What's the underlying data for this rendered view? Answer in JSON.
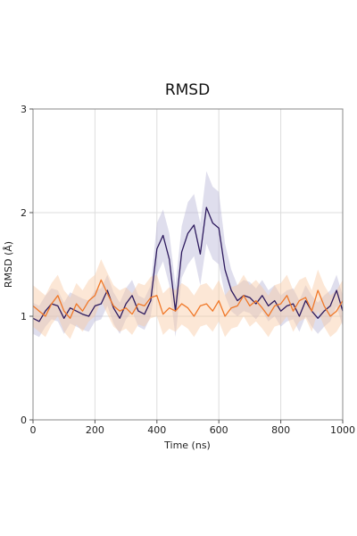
{
  "chart_data": {
    "type": "line",
    "title": "RMSD",
    "xlabel": "Time (ns)",
    "ylabel": "RMSD (Å)",
    "xlim": [
      0,
      1000
    ],
    "ylim": [
      0,
      3
    ],
    "x_ticks": [
      "0",
      "200",
      "400",
      "600",
      "800",
      "1000"
    ],
    "y_ticks": [
      "0",
      "1",
      "2",
      "3"
    ],
    "grid": true,
    "legend": "none",
    "colors": {
      "series_1": "#2d1a5e",
      "series_1_band": "#b8b6d8",
      "series_2": "#f07828",
      "series_2_band": "#f9c9a3",
      "grid": "#dddddd",
      "axes": "#888888"
    },
    "x": [
      0,
      20,
      40,
      60,
      80,
      100,
      120,
      140,
      160,
      180,
      200,
      220,
      240,
      260,
      280,
      300,
      320,
      340,
      360,
      380,
      400,
      420,
      440,
      460,
      480,
      500,
      520,
      540,
      560,
      580,
      600,
      620,
      640,
      660,
      680,
      700,
      720,
      740,
      760,
      780,
      800,
      820,
      840,
      860,
      880,
      900,
      920,
      940,
      960,
      980,
      1000
    ],
    "series": [
      {
        "values": [
          0.98,
          0.95,
          1.05,
          1.12,
          1.1,
          0.98,
          1.08,
          1.05,
          1.02,
          1.0,
          1.1,
          1.12,
          1.25,
          1.08,
          0.98,
          1.12,
          1.2,
          1.05,
          1.02,
          1.15,
          1.65,
          1.78,
          1.55,
          1.05,
          1.62,
          1.8,
          1.88,
          1.6,
          2.05,
          1.9,
          1.85,
          1.45,
          1.25,
          1.15,
          1.2,
          1.18,
          1.12,
          1.2,
          1.1,
          1.15,
          1.05,
          1.1,
          1.12,
          1.0,
          1.15,
          1.05,
          0.98,
          1.05,
          1.1,
          1.25,
          1.05
        ],
        "spread": [
          0.15,
          0.15,
          0.15,
          0.15,
          0.15,
          0.15,
          0.15,
          0.15,
          0.15,
          0.15,
          0.15,
          0.15,
          0.15,
          0.15,
          0.15,
          0.15,
          0.15,
          0.15,
          0.15,
          0.15,
          0.25,
          0.25,
          0.25,
          0.25,
          0.25,
          0.3,
          0.3,
          0.3,
          0.35,
          0.35,
          0.35,
          0.25,
          0.2,
          0.15,
          0.15,
          0.15,
          0.15,
          0.15,
          0.15,
          0.15,
          0.15,
          0.15,
          0.15,
          0.15,
          0.15,
          0.15,
          0.15,
          0.15,
          0.15,
          0.15,
          0.15
        ]
      },
      {
        "values": [
          1.1,
          1.05,
          1.0,
          1.12,
          1.2,
          1.05,
          0.98,
          1.12,
          1.05,
          1.15,
          1.2,
          1.35,
          1.22,
          1.1,
          1.05,
          1.08,
          1.02,
          1.12,
          1.1,
          1.18,
          1.2,
          1.02,
          1.08,
          1.05,
          1.12,
          1.08,
          1.0,
          1.1,
          1.12,
          1.05,
          1.15,
          1.0,
          1.08,
          1.1,
          1.2,
          1.1,
          1.15,
          1.08,
          1.0,
          1.1,
          1.12,
          1.2,
          1.05,
          1.15,
          1.18,
          1.05,
          1.25,
          1.1,
          1.0,
          1.05,
          1.15
        ],
        "spread": [
          0.2,
          0.2,
          0.2,
          0.2,
          0.2,
          0.2,
          0.2,
          0.2,
          0.2,
          0.2,
          0.2,
          0.2,
          0.2,
          0.2,
          0.2,
          0.2,
          0.2,
          0.2,
          0.2,
          0.2,
          0.2,
          0.2,
          0.2,
          0.2,
          0.2,
          0.2,
          0.2,
          0.2,
          0.2,
          0.2,
          0.2,
          0.2,
          0.2,
          0.2,
          0.2,
          0.2,
          0.2,
          0.2,
          0.2,
          0.2,
          0.2,
          0.2,
          0.2,
          0.2,
          0.2,
          0.2,
          0.2,
          0.2,
          0.2,
          0.2,
          0.2
        ]
      }
    ]
  }
}
